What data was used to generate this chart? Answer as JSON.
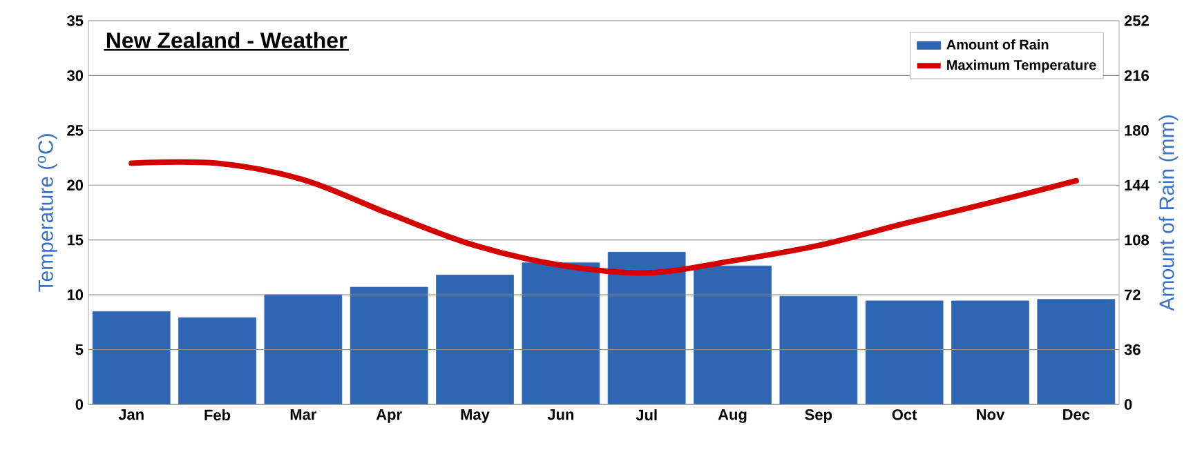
{
  "chart_data": {
    "type": "bar",
    "title": "New Zealand - Weather",
    "categories": [
      "Jan",
      "Feb",
      "Mar",
      "Apr",
      "May",
      "Jun",
      "Jul",
      "Aug",
      "Sep",
      "Oct",
      "Nov",
      "Dec"
    ],
    "series": [
      {
        "name": "Amount of Rain",
        "axis": "y2",
        "color": "#2f66b3",
        "values": [
          61,
          57,
          72,
          77,
          85,
          93,
          100,
          91,
          71,
          68,
          68,
          69
        ]
      },
      {
        "name": "Maximum Temperature",
        "type": "line",
        "color": "#d40000",
        "values": [
          22.0,
          22.0,
          20.5,
          17.4,
          14.5,
          12.7,
          12.0,
          13.1,
          14.5,
          16.5,
          18.4,
          20.4
        ]
      }
    ],
    "ylabel": "Temperature ($^{o}$C)",
    "y2label": "Amount of Rain (mm)",
    "ylim": [
      0,
      35
    ],
    "yticks": [
      0,
      5,
      10,
      15,
      20,
      25,
      30,
      35
    ],
    "y2lim": [
      0,
      252
    ],
    "y2ticks": [
      0,
      36,
      72,
      108,
      144,
      180,
      216,
      252
    ],
    "grid": "y",
    "legend": "top right"
  }
}
